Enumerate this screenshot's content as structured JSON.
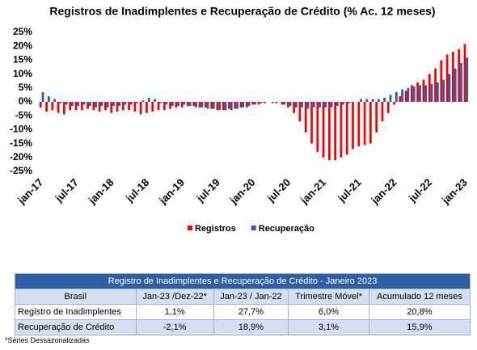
{
  "chart_data": {
    "type": "bar",
    "title": "Registros de Inadimplentes e Recuperação de Crédito (% Ac. 12 meses)",
    "categories": [
      "jan-17",
      null,
      null,
      null,
      null,
      null,
      "jul-17",
      null,
      null,
      null,
      null,
      null,
      "jan-18",
      null,
      null,
      null,
      null,
      null,
      "jul-18",
      null,
      null,
      null,
      null,
      null,
      "jan-19",
      null,
      null,
      null,
      null,
      null,
      "jul-19",
      null,
      null,
      null,
      null,
      null,
      "jan-20",
      null,
      null,
      null,
      null,
      null,
      "jul-20",
      null,
      null,
      null,
      null,
      null,
      "jan-21",
      null,
      null,
      null,
      null,
      null,
      "jul-21",
      null,
      null,
      null,
      null,
      null,
      "jan-22",
      null,
      null,
      null,
      null,
      null,
      "jul-22",
      null,
      null,
      null,
      null,
      null,
      "jan-23"
    ],
    "series": [
      {
        "name": "Registros",
        "color": "#ff0000",
        "values": [
          -2,
          -3.5,
          -3,
          -4,
          -4.5,
          -3,
          -3,
          -3,
          -2.5,
          -3,
          -3.5,
          -3,
          -4,
          -3.5,
          -3,
          -3,
          -3.5,
          -4.5,
          -4,
          -3.5,
          -3,
          -3,
          -2.5,
          -2,
          -2,
          -1.5,
          -1.5,
          -2,
          -2,
          -2.5,
          -3,
          -3,
          -2.5,
          -2.5,
          -2,
          -2,
          -1,
          -1,
          -0.5,
          0,
          -0.5,
          -1,
          -2,
          -4,
          -7,
          -11,
          -15,
          -18,
          -20,
          -21,
          -21,
          -20,
          -19,
          -17,
          -16,
          -15.5,
          -15,
          -11,
          -7,
          -4,
          -1,
          2,
          4,
          6,
          7,
          8,
          10,
          12,
          15,
          17,
          18,
          19,
          20.8
        ]
      },
      {
        "name": "Recuperação",
        "color": "#1f5fb4",
        "values": [
          3.5,
          2,
          1,
          -0.5,
          -1,
          -1.5,
          -1.5,
          -1,
          -1.5,
          -2,
          -1.5,
          -2,
          -1.5,
          -1.5,
          -1,
          -1,
          -0.5,
          0.5,
          1.5,
          1,
          -0.5,
          -1,
          -1.5,
          -1.5,
          -1,
          -1.5,
          -2,
          -2,
          -2.5,
          -2.5,
          -3,
          -3,
          -3,
          -2.5,
          -2,
          -1.5,
          -1,
          -0.5,
          0,
          -0.5,
          0,
          -1,
          -1.5,
          -2,
          -2,
          -2.5,
          -2,
          -2,
          -2,
          -2,
          -1.5,
          -1,
          -0.5,
          0,
          1,
          1,
          1,
          1,
          1.5,
          2.5,
          3.5,
          4.5,
          5,
          5.5,
          6,
          6,
          6.5,
          7,
          8,
          10,
          12,
          14,
          15.9
        ]
      }
    ],
    "ylim": [
      -25,
      25
    ],
    "yticks": [
      {
        "value": 25,
        "label": "25%"
      },
      {
        "value": 20,
        "label": "20%"
      },
      {
        "value": 15,
        "label": "15%"
      },
      {
        "value": 10,
        "label": "10%"
      },
      {
        "value": 5,
        "label": "5%"
      },
      {
        "value": 0,
        "label": "0%"
      },
      {
        "value": -5,
        "label": "-5%"
      },
      {
        "value": -10,
        "label": "-10%"
      },
      {
        "value": -15,
        "label": "-15%"
      },
      {
        "value": -20,
        "label": "-20%"
      },
      {
        "value": -25,
        "label": "-25%"
      }
    ],
    "grid": false,
    "legend": "bottom"
  },
  "table": {
    "title": "Registro de Inadimplentes e Recuperação de Crédito - Janeiro 2023",
    "header": [
      "Brasil",
      "Jan-23 /Dez-22*",
      "Jan-23 / Jan-22",
      "Trimestre Móvel*",
      "Acumulado 12 meses"
    ],
    "rows": [
      [
        "Registro de Inadimplentes",
        "1,1%",
        "27,7%",
        "6,0%",
        "20,8%"
      ],
      [
        "Recuperação de Crédito",
        "-2,1%",
        "18,9%",
        "3,1%",
        "15,9%"
      ]
    ]
  },
  "footnote": "*Séries Dessazonalizadas"
}
